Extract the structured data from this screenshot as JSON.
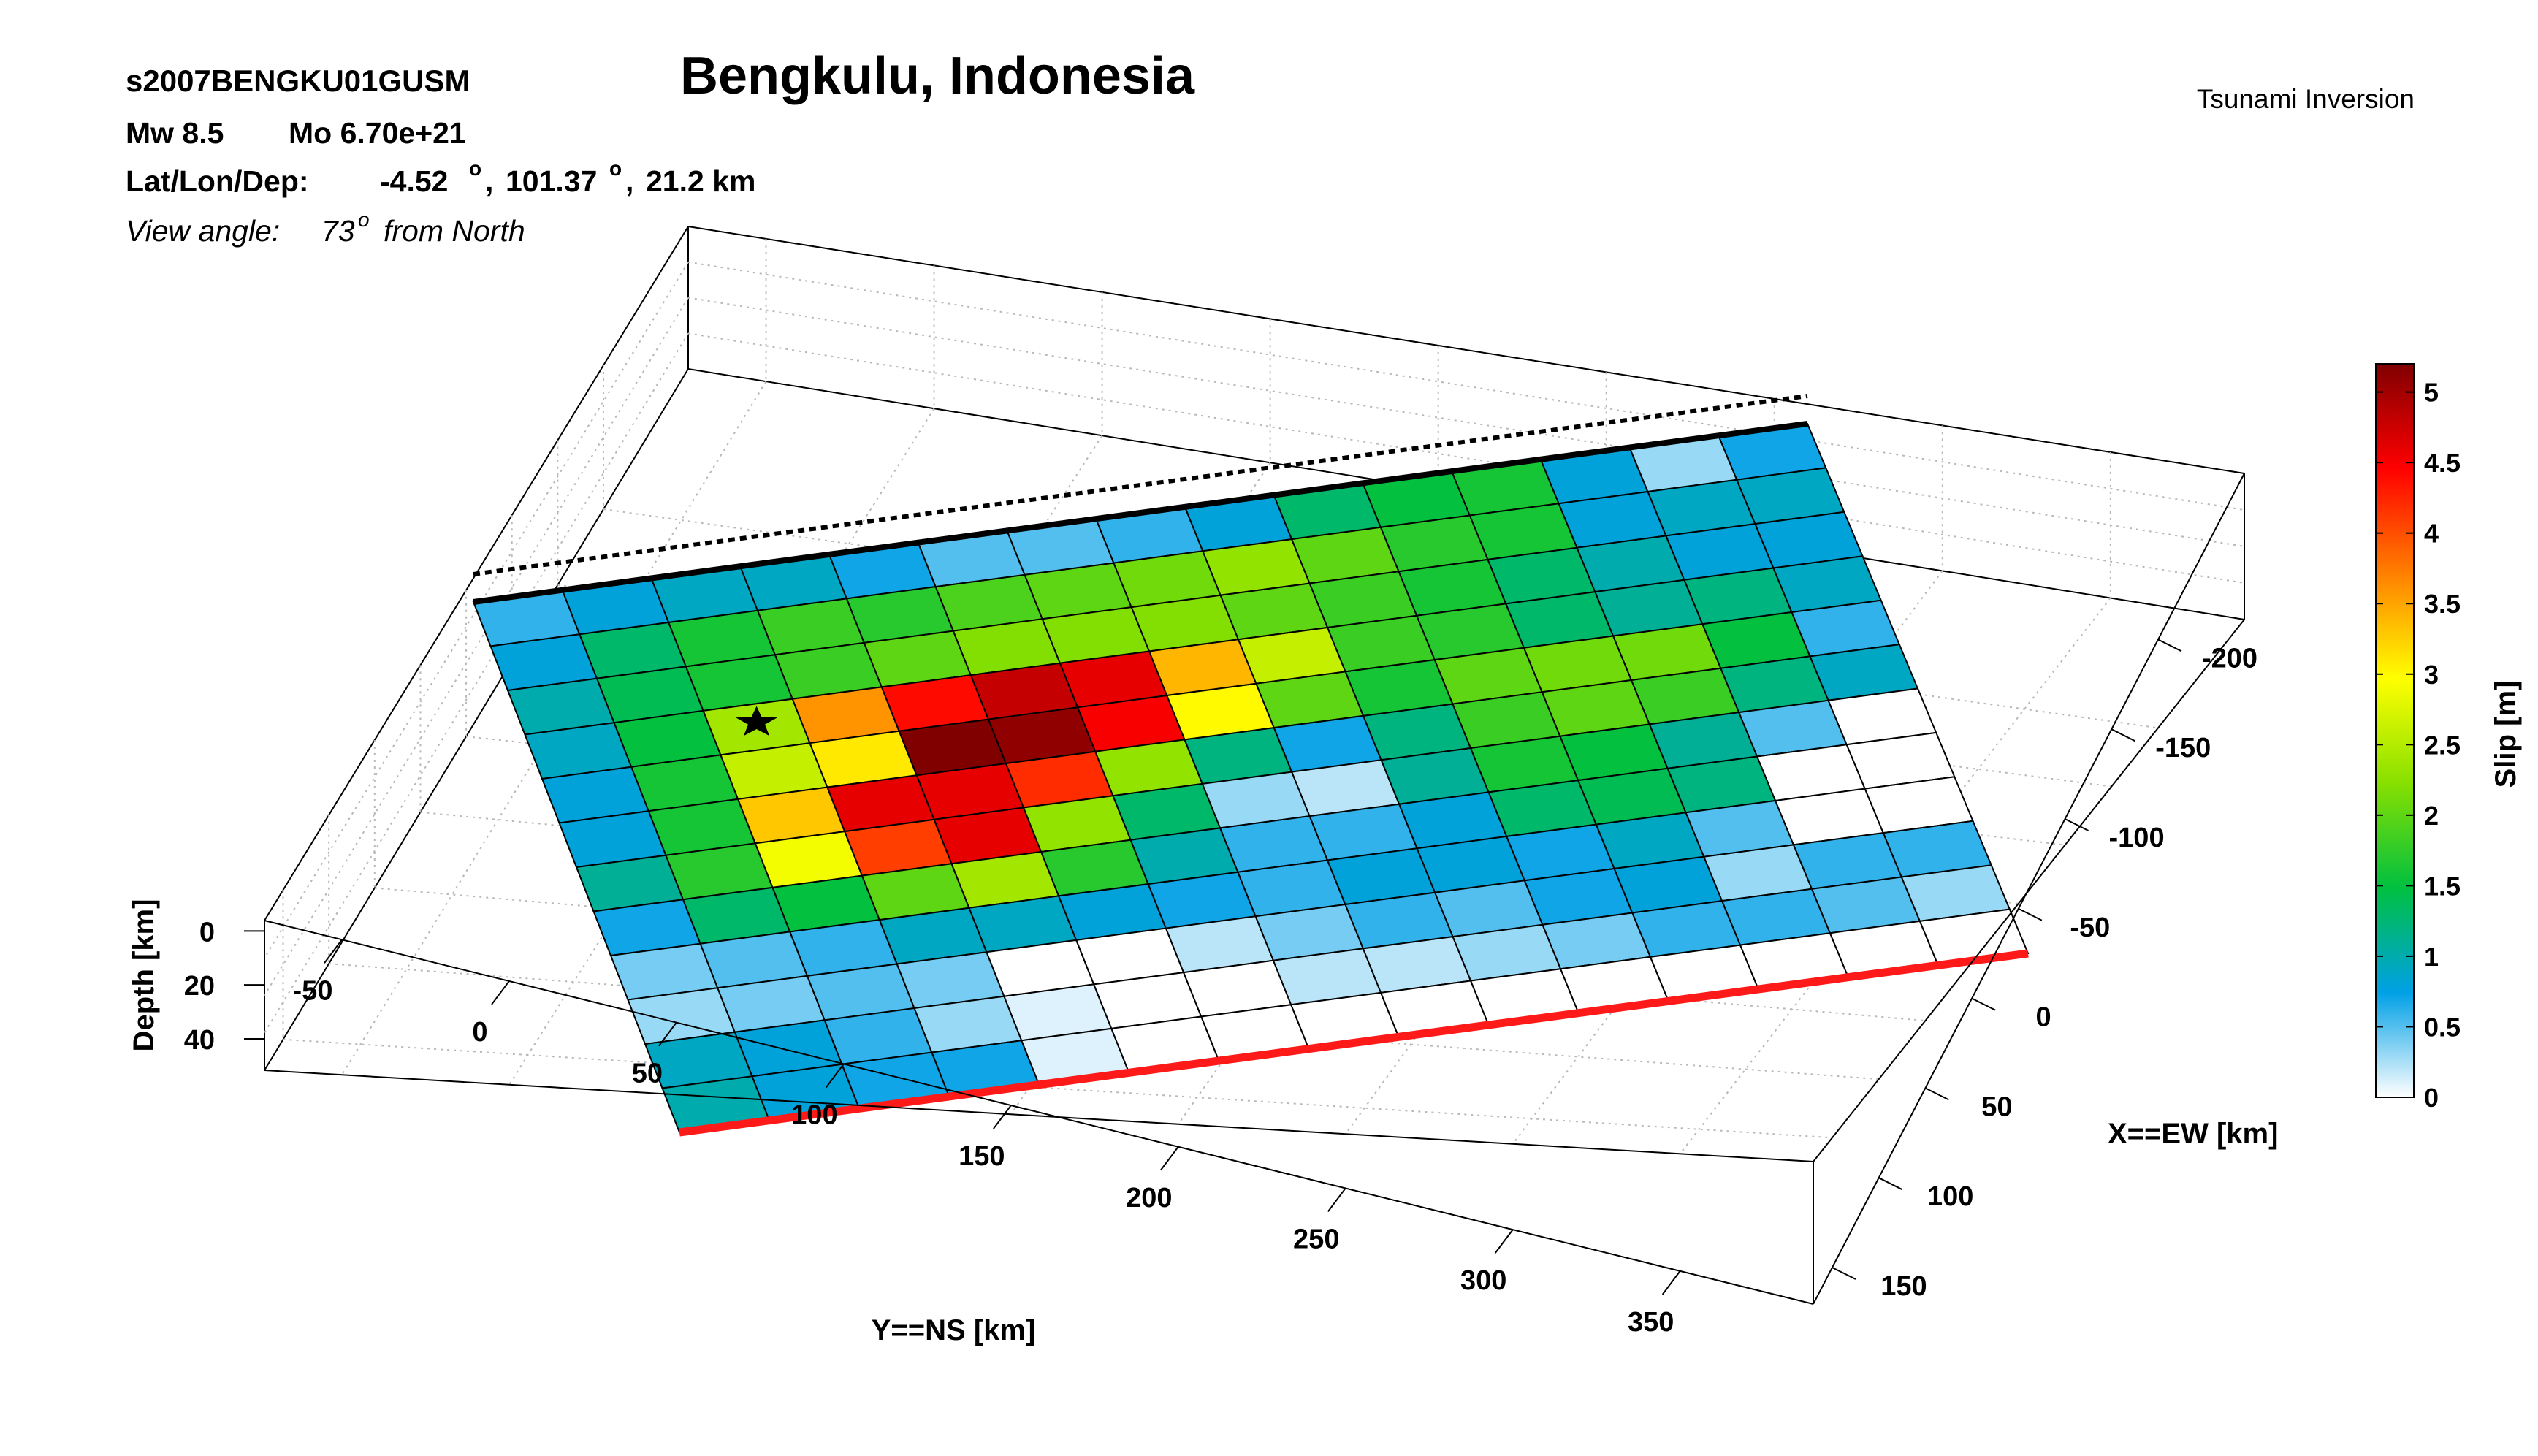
{
  "header": {
    "event_id": "s2007BENGKU01GUSM",
    "magnitude": "Mw 8.5",
    "moment": "Mo 6.70e+21",
    "location_label": "Lat/Lon/Dep:",
    "lat": "-4.52",
    "lon": "101.37",
    "depth": "21.2 km",
    "view_prefix": "View angle:",
    "view_value": "73",
    "view_suffix": "from North",
    "degree_symbol": "o",
    "title": "Bengkulu, Indonesia",
    "method": "Tsunami Inversion"
  },
  "chart_data": {
    "type": "heatmap",
    "title": "Bengkulu, Indonesia",
    "subtitle": "Tsunami Inversion",
    "xlabel": "Y==NS [km]",
    "ylabel": "X==EW [km]",
    "zlabel": "Depth [km]",
    "colorbar_label": "Slip [m]",
    "view_angle_deg": 73,
    "y_ticks": [
      "-50",
      "0",
      "50",
      "100",
      "150",
      "200",
      "250",
      "300",
      "350"
    ],
    "x_ticks": [
      "-200",
      "-150",
      "-100",
      "-50",
      "0",
      "50",
      "100",
      "150"
    ],
    "z_ticks": [
      "0",
      "20",
      "40"
    ],
    "colorbar_ticks": [
      "0",
      "0.5",
      "1",
      "1.5",
      "2",
      "2.5",
      "3",
      "3.5",
      "4",
      "4.5",
      "5"
    ],
    "colorbar_range": [
      0,
      5.2
    ],
    "grid": true,
    "slip_grid_m": [
      [
        0.6,
        0.8,
        0.9,
        0.9,
        0.7,
        0.5,
        0.5,
        0.6,
        0.8,
        1.3,
        1.5,
        1.6,
        0.8,
        0.3,
        0.7
      ],
      [
        0.8,
        1.3,
        1.6,
        1.8,
        1.7,
        1.9,
        2.0,
        2.1,
        2.3,
        2.0,
        1.7,
        1.6,
        0.8,
        0.9,
        0.9
      ],
      [
        1.0,
        1.4,
        1.6,
        1.8,
        2.0,
        2.2,
        2.2,
        2.2,
        2.0,
        1.8,
        1.6,
        1.3,
        1.0,
        0.8,
        0.8
      ],
      [
        0.9,
        1.5,
        2.4,
        3.6,
        4.4,
        4.8,
        4.6,
        3.4,
        2.6,
        1.8,
        1.7,
        1.3,
        1.1,
        1.2,
        0.9
      ],
      [
        0.8,
        1.6,
        2.6,
        3.1,
        5.2,
        5.1,
        4.5,
        3.0,
        2.0,
        1.6,
        2.0,
        2.1,
        2.1,
        1.5,
        0.6
      ],
      [
        0.8,
        1.6,
        3.3,
        4.6,
        4.6,
        4.2,
        2.3,
        1.2,
        0.7,
        1.2,
        1.8,
        2.0,
        1.8,
        1.2,
        0.9
      ],
      [
        1.1,
        1.7,
        2.9,
        4.1,
        4.6,
        2.3,
        1.3,
        0.3,
        0.2,
        1.1,
        1.6,
        1.5,
        1.1,
        0.5,
        0.0
      ],
      [
        0.7,
        1.3,
        1.5,
        2.0,
        2.4,
        1.7,
        1.0,
        0.6,
        0.6,
        0.8,
        1.3,
        1.4,
        1.2,
        0.0,
        0.0
      ],
      [
        0.4,
        0.5,
        0.6,
        0.9,
        0.9,
        0.8,
        0.7,
        0.6,
        0.8,
        0.8,
        0.7,
        0.9,
        0.5,
        0.0,
        0.0
      ],
      [
        0.3,
        0.4,
        0.5,
        0.4,
        0.0,
        0.0,
        0.2,
        0.4,
        0.6,
        0.5,
        0.7,
        0.8,
        0.3,
        0.6,
        0.6
      ],
      [
        0.9,
        0.8,
        0.6,
        0.3,
        0.1,
        0.0,
        0.0,
        0.2,
        0.2,
        0.3,
        0.4,
        0.6,
        0.6,
        0.5,
        0.3
      ],
      [
        1.0,
        0.8,
        0.7,
        0.7,
        0.1,
        0.0,
        0.0,
        0.0,
        0.0,
        0.0,
        0.0,
        0.0,
        0.0,
        0.0,
        0.0
      ]
    ],
    "hypocenter_cell": {
      "row": 3,
      "col": 2
    }
  },
  "colors": {
    "trench_line": "#ff1a1a",
    "edge_line": "#000000",
    "colormap": [
      "#ffffff",
      "#00a0e6",
      "#00c040",
      "#88e000",
      "#ffff00",
      "#ff8000",
      "#ff0000",
      "#800000"
    ]
  },
  "icons": {
    "hypocenter": "star-icon"
  }
}
